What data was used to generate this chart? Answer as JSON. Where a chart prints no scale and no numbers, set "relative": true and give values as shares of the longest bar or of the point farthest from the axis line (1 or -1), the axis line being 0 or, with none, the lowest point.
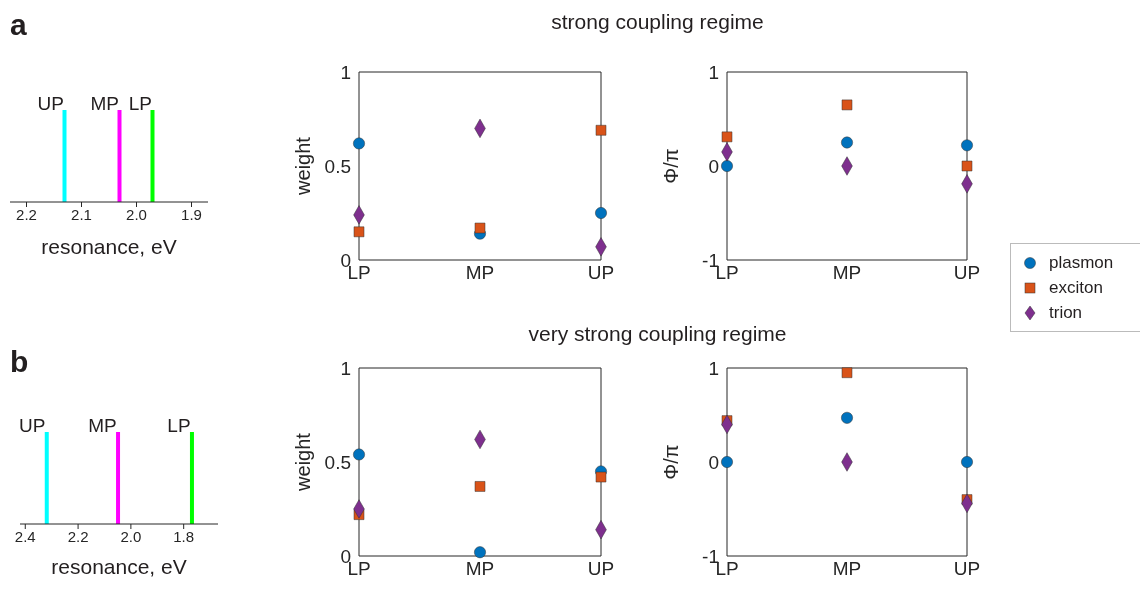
{
  "chart_data": [
    {
      "type": "bar",
      "relative": true,
      "x": [
        2.13,
        2.03,
        1.97
      ],
      "values": [
        1,
        1,
        1
      ],
      "colors": [
        "#00ffff",
        "#ff00ff",
        "#00ff00"
      ],
      "xlim": [
        2.23,
        1.87
      ],
      "xticks": [
        2.2,
        2.1,
        {
          "value": 2.0,
          "label": "2.0"
        },
        1.9
      ],
      "xlabel": "resonance, eV",
      "annotations": [
        "a",
        {
          "text": "UP",
          "x": 2.13,
          "y": 1
        },
        {
          "text": "MP",
          "x": 2.03,
          "y": 1
        },
        {
          "text": "LP",
          "x": 1.97,
          "y": 1
        }
      ]
    },
    {
      "type": "scatter",
      "title": "strong coupling regime",
      "categories": [
        "LP",
        "MP",
        "UP"
      ],
      "ylabel": "weight",
      "ylim": [
        0,
        1
      ],
      "yticks": [
        0,
        0.5,
        1
      ],
      "series": [
        {
          "color": "#0072bd",
          "marker": "circle",
          "values": [
            0.62,
            0.14,
            0.25
          ]
        },
        {
          "color": "#d95319",
          "marker": "square",
          "values": [
            0.15,
            0.17,
            0.69
          ]
        },
        {
          "color": "#7e2f8e",
          "marker": "diamond",
          "values": [
            0.24,
            0.7,
            0.07
          ]
        }
      ]
    },
    {
      "type": "scatter",
      "categories": [
        "LP",
        "MP",
        "UP"
      ],
      "ylabel": "Φ/π",
      "ylim": [
        -1,
        1
      ],
      "yticks": [
        -1,
        0,
        1
      ],
      "legend": "right",
      "series": [
        {
          "name": "plasmon",
          "color": "#0072bd",
          "marker": "circle",
          "values": [
            0.0,
            0.25,
            0.22
          ]
        },
        {
          "name": "exciton",
          "color": "#d95319",
          "marker": "square",
          "values": [
            0.31,
            0.65,
            0.0
          ]
        },
        {
          "name": "trion",
          "color": "#7e2f8e",
          "marker": "diamond",
          "values": [
            0.15,
            0.0,
            -0.19
          ]
        }
      ]
    },
    {
      "type": "bar",
      "relative": true,
      "x": [
        2.32,
        2.05,
        1.77
      ],
      "values": [
        1,
        1,
        1
      ],
      "colors": [
        "#00ffff",
        "#ff00ff",
        "#00ff00"
      ],
      "xlim": [
        2.42,
        1.67
      ],
      "xticks": [
        2.4,
        2.2,
        {
          "value": 2.0,
          "label": "2.0"
        },
        1.8
      ],
      "xlabel": "resonance, eV",
      "annotations": [
        "b",
        {
          "text": "UP",
          "x": 2.32,
          "y": 1
        },
        {
          "text": "MP",
          "x": 2.05,
          "y": 1
        },
        {
          "text": "LP",
          "x": 1.77,
          "y": 1
        }
      ]
    },
    {
      "type": "scatter",
      "title": "very strong coupling regime",
      "categories": [
        "LP",
        "MP",
        "UP"
      ],
      "ylabel": "weight",
      "ylim": [
        0,
        1
      ],
      "yticks": [
        0,
        0.5,
        1
      ],
      "series": [
        {
          "color": "#0072bd",
          "marker": "circle",
          "values": [
            0.54,
            0.02,
            0.45
          ]
        },
        {
          "color": "#d95319",
          "marker": "square",
          "values": [
            0.22,
            0.37,
            0.42
          ]
        },
        {
          "color": "#7e2f8e",
          "marker": "diamond",
          "values": [
            0.25,
            0.62,
            0.14
          ]
        }
      ]
    },
    {
      "type": "scatter",
      "categories": [
        "LP",
        "MP",
        "UP"
      ],
      "ylabel": "Φ/π",
      "ylim": [
        -1,
        1
      ],
      "yticks": [
        -1,
        0,
        1
      ],
      "series": [
        {
          "color": "#0072bd",
          "marker": "circle",
          "values": [
            0.0,
            0.47,
            0.0
          ]
        },
        {
          "color": "#d95319",
          "marker": "square",
          "values": [
            0.44,
            0.95,
            -0.4
          ]
        },
        {
          "color": "#7e2f8e",
          "marker": "diamond",
          "values": [
            0.4,
            0.0,
            -0.44
          ]
        }
      ]
    }
  ]
}
